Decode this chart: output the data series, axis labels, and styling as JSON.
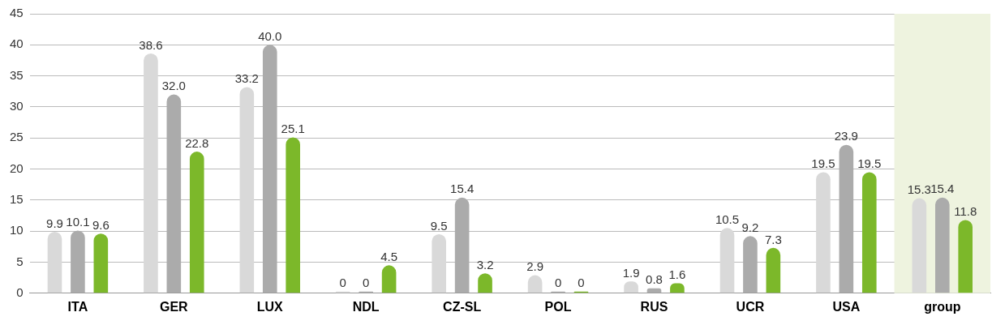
{
  "chart_data": {
    "type": "bar",
    "categories": [
      "ITA",
      "GER",
      "LUX",
      "NDL",
      "CZ-SL",
      "POL",
      "RUS",
      "UCR",
      "USA",
      "group"
    ],
    "series": [
      {
        "color": "#d9d9d9",
        "values": [
          9.9,
          38.6,
          33.2,
          0,
          9.5,
          2.9,
          1.9,
          10.5,
          19.5,
          15.3
        ],
        "value_labels": [
          "9.9",
          "38.6",
          "33.2",
          "0",
          "9.5",
          "2.9",
          "1.9",
          "10.5",
          "19.5",
          "15.3"
        ]
      },
      {
        "color": "#ababab",
        "values": [
          10.1,
          32.0,
          40.0,
          0,
          15.4,
          0,
          0.8,
          9.2,
          23.9,
          15.4
        ],
        "value_labels": [
          "10.1",
          "32.0",
          "40.0",
          "0",
          "15.4",
          "0",
          "0.8",
          "9.2",
          "23.9",
          "15.4"
        ]
      },
      {
        "color": "#7cb82a",
        "values": [
          9.6,
          22.8,
          25.1,
          4.5,
          3.2,
          0,
          1.6,
          7.3,
          19.5,
          11.8
        ],
        "value_labels": [
          "9.6",
          "22.8",
          "25.1",
          "4.5",
          "3.2",
          "0",
          "1.6",
          "7.3",
          "19.5",
          "11.8"
        ]
      }
    ],
    "bands": [
      {
        "axis": "x",
        "from": "group",
        "to": "group",
        "color": "#eef3df"
      }
    ],
    "ylim": [
      0,
      45
    ],
    "yticks": [
      0,
      5,
      10,
      15,
      20,
      25,
      30,
      35,
      40,
      45
    ],
    "grid": "y",
    "legend": false
  }
}
